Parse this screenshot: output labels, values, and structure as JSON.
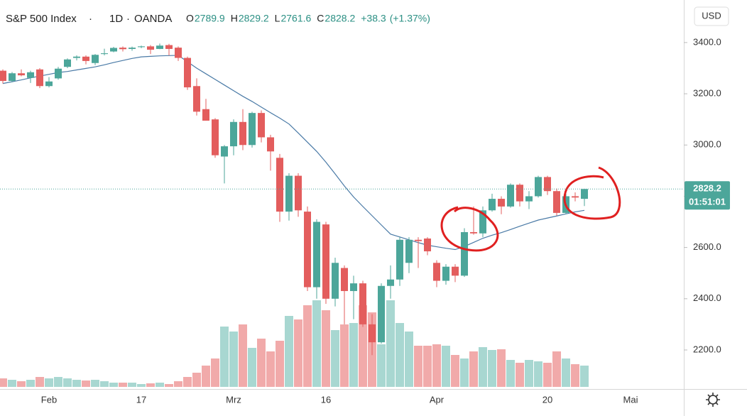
{
  "chart_data": {
    "type": "candlestick",
    "title": "S&P 500 Index",
    "interval": "1D",
    "source": "OANDA",
    "ohlc_prefixes": [
      "O",
      "H",
      "L",
      "C"
    ],
    "change_label": "+38.3",
    "change_pct_label": "(+1.37%)",
    "currency": "USD",
    "countdown": "01:51:01",
    "up_color": "#4ca69a",
    "down_color": "#e35d5d",
    "up_volume_color": "#a8d7d1",
    "down_volume_color": "#f1aaaa",
    "ma_color": "#4a7aa6",
    "categories": [
      null,
      null,
      null,
      null,
      null,
      "Feb",
      null,
      null,
      null,
      null,
      null,
      null,
      null,
      null,
      null,
      "17",
      null,
      null,
      null,
      null,
      null,
      null,
      null,
      null,
      null,
      "Mrz",
      null,
      null,
      null,
      null,
      null,
      null,
      null,
      null,
      null,
      "16",
      null,
      null,
      null,
      null,
      null,
      null,
      null,
      null,
      null,
      null,
      null,
      "Apr",
      null,
      null,
      null,
      null,
      null,
      null,
      null,
      null,
      null,
      null,
      null,
      "20",
      null,
      null,
      null,
      null,
      null,
      null,
      null,
      null,
      "Mai"
    ],
    "open": [
      3290,
      3250,
      3280,
      3262,
      3295,
      3230,
      3260,
      3305,
      3340,
      3345,
      3320,
      3355,
      3365,
      3380,
      3375,
      3382,
      3385,
      3375,
      3390,
      3380,
      3340,
      3230,
      3140,
      3100,
      2955,
      2995,
      3090,
      3000,
      3125,
      3030,
      2950,
      2740,
      2880,
      2740,
      2445,
      2690,
      2400,
      2520,
      2430,
      2460,
      2300,
      2230,
      2450,
      2475,
      2540,
      2630,
      2635,
      2540,
      2470,
      2525,
      2490,
      2660,
      2655,
      2745,
      2790,
      2760,
      2845,
      2780,
      2800,
      2875,
      2820,
      2735,
      2800,
      2789.9,
      null,
      null,
      null,
      null,
      null
    ],
    "high": [
      3295,
      3285,
      3295,
      3290,
      3300,
      3265,
      3305,
      3338,
      3350,
      3350,
      3355,
      3376,
      3383,
      3385,
      3384,
      3388,
      3390,
      3396,
      3395,
      3385,
      3345,
      3260,
      3180,
      3105,
      3000,
      3100,
      3140,
      3130,
      3135,
      3040,
      2965,
      2890,
      2890,
      2760,
      2710,
      2700,
      2560,
      2530,
      2490,
      2470,
      2340,
      2460,
      2530,
      2640,
      2640,
      2640,
      2640,
      2550,
      2535,
      2535,
      2675,
      2760,
      2760,
      2810,
      2800,
      2850,
      2850,
      2820,
      2880,
      2880,
      2830,
      2810,
      2815,
      2829.2,
      null,
      null,
      null,
      null,
      null
    ],
    "low": [
      3240,
      3245,
      3268,
      3242,
      3222,
      3225,
      3255,
      3300,
      3330,
      3315,
      3312,
      3350,
      3362,
      3365,
      3368,
      3378,
      3355,
      3374,
      3350,
      3328,
      3215,
      3115,
      3095,
      2950,
      2850,
      2960,
      2980,
      2990,
      3010,
      2900,
      2700,
      2705,
      2720,
      2430,
      2400,
      2380,
      2370,
      2300,
      2320,
      2290,
      2180,
      2225,
      2400,
      2450,
      2500,
      2520,
      2570,
      2445,
      2455,
      2465,
      2485,
      2650,
      2640,
      2740,
      2730,
      2755,
      2760,
      2750,
      2795,
      2805,
      2725,
      2730,
      2780,
      2761.6,
      null,
      null,
      null,
      null,
      null
    ],
    "close": [
      3250,
      3280,
      3272,
      3284,
      3230,
      3248,
      3298,
      3334,
      3345,
      3328,
      3352,
      3358,
      3379,
      3374,
      3380,
      3385,
      3372,
      3388,
      3375,
      3340,
      3225,
      3130,
      3095,
      2960,
      2995,
      3090,
      3000,
      3125,
      3030,
      2975,
      2740,
      2880,
      2745,
      2445,
      2700,
      2400,
      2540,
      2430,
      2460,
      2300,
      2230,
      2450,
      2475,
      2630,
      2630,
      2625,
      2585,
      2470,
      2525,
      2490,
      2660,
      2655,
      2745,
      2790,
      2760,
      2845,
      2780,
      2800,
      2875,
      2820,
      2735,
      2800,
      2795,
      2828.2,
      null,
      null,
      null,
      null,
      null
    ],
    "volume": [
      12,
      10,
      8,
      10,
      14,
      12,
      14,
      12,
      10,
      9,
      10,
      8,
      6,
      6,
      6,
      4,
      5,
      6,
      4,
      8,
      14,
      20,
      30,
      40,
      85,
      78,
      88,
      55,
      68,
      50,
      65,
      100,
      95,
      115,
      122,
      108,
      80,
      88,
      90,
      115,
      105,
      60,
      122,
      90,
      78,
      58,
      58,
      60,
      58,
      45,
      40,
      50,
      56,
      52,
      53,
      38,
      34,
      38,
      36,
      34,
      50,
      40,
      32,
      30,
      null,
      null,
      null,
      null,
      null
    ],
    "volume_lim": [
      0,
      150
    ],
    "ma": [
      3240,
      3247,
      3254,
      3262,
      3269,
      3276,
      3283,
      3287,
      3293,
      3299,
      3305,
      3313,
      3322,
      3330,
      3338,
      3344,
      3346,
      3348,
      3349,
      3350,
      3325,
      3300,
      3278,
      3256,
      3234,
      3212,
      3190,
      3170,
      3148,
      3126,
      3105,
      3082,
      3047,
      3011,
      2975,
      2933,
      2887,
      2840,
      2797,
      2760,
      2724,
      2688,
      2652,
      2641,
      2630,
      2619,
      2609,
      2603,
      2597,
      2592,
      2604,
      2620,
      2636,
      2648,
      2658,
      2670,
      2683,
      2695,
      2707,
      2715,
      2723,
      2731,
      2739,
      2745,
      null,
      null,
      null,
      null,
      null
    ],
    "ylim": [
      2042,
      3566
    ],
    "yticks": [
      {
        "value": 2200,
        "label": "2200.0"
      },
      {
        "value": 2400,
        "label": "2400.0"
      },
      {
        "value": 2600,
        "label": "2600.0"
      },
      {
        "value": 2800,
        "label": "2800.0"
      },
      {
        "value": 3000,
        "label": "3000.0"
      },
      {
        "value": 3200,
        "label": "3200.0"
      },
      {
        "value": 3400,
        "label": "3400.0"
      }
    ],
    "grid": false
  }
}
